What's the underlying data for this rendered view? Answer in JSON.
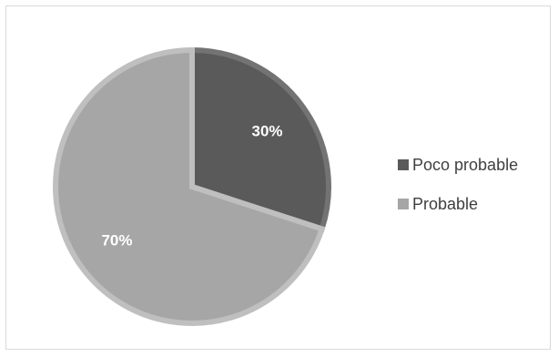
{
  "chart_data": {
    "type": "pie",
    "categories": [
      "Poco probable",
      "Probable"
    ],
    "values": [
      30,
      70
    ],
    "data_labels": [
      "30%",
      "70%"
    ],
    "colors": [
      "#5a5a5a",
      "#a6a6a6"
    ],
    "border_colors": [
      "#737373",
      "#bfbfbf"
    ],
    "legend_position": "right"
  }
}
